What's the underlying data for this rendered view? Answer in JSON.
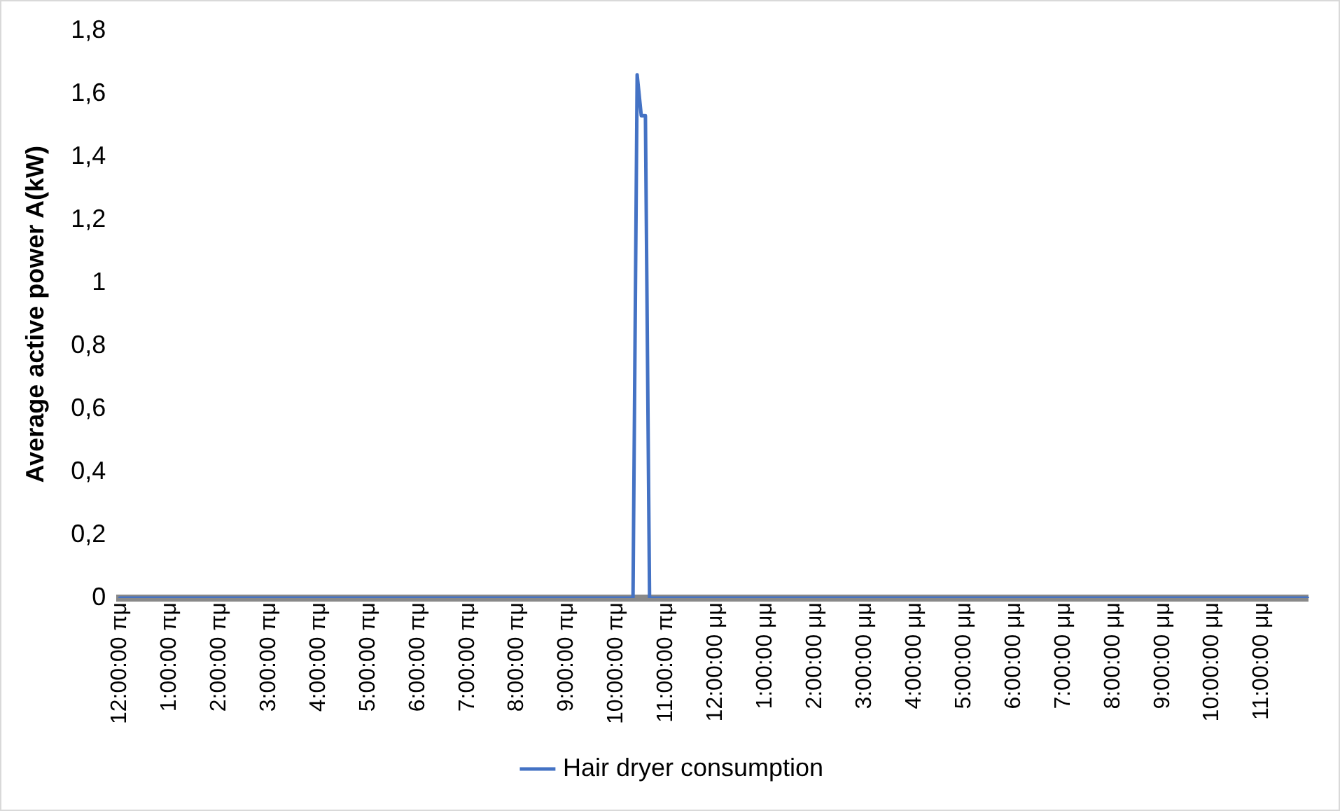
{
  "chart_data": {
    "type": "line",
    "ylabel": "Average active power A(kW)",
    "categories": [
      "12:00:00 πμ",
      null,
      null,
      null,
      null,
      null,
      null,
      null,
      null,
      null,
      null,
      null,
      "1:00:00 πμ",
      null,
      null,
      null,
      null,
      null,
      null,
      null,
      null,
      null,
      null,
      null,
      "2:00:00 πμ",
      null,
      null,
      null,
      null,
      null,
      null,
      null,
      null,
      null,
      null,
      null,
      "3:00:00 πμ",
      null,
      null,
      null,
      null,
      null,
      null,
      null,
      null,
      null,
      null,
      null,
      "4:00:00 πμ",
      null,
      null,
      null,
      null,
      null,
      null,
      null,
      null,
      null,
      null,
      null,
      "5:00:00 πμ",
      null,
      null,
      null,
      null,
      null,
      null,
      null,
      null,
      null,
      null,
      null,
      "6:00:00 πμ",
      null,
      null,
      null,
      null,
      null,
      null,
      null,
      null,
      null,
      null,
      null,
      "7:00:00 πμ",
      null,
      null,
      null,
      null,
      null,
      null,
      null,
      null,
      null,
      null,
      null,
      "8:00:00 πμ",
      null,
      null,
      null,
      null,
      null,
      null,
      null,
      null,
      null,
      null,
      null,
      "9:00:00 πμ",
      null,
      null,
      null,
      null,
      null,
      null,
      null,
      null,
      null,
      null,
      null,
      "10:00:00 πμ",
      null,
      null,
      null,
      null,
      null,
      null,
      null,
      null,
      null,
      null,
      null,
      "11:00:00 πμ",
      null,
      null,
      null,
      null,
      null,
      null,
      null,
      null,
      null,
      null,
      null,
      "12:00:00 μμ",
      null,
      null,
      null,
      null,
      null,
      null,
      null,
      null,
      null,
      null,
      null,
      "1:00:00 μμ",
      null,
      null,
      null,
      null,
      null,
      null,
      null,
      null,
      null,
      null,
      null,
      "2:00:00 μμ",
      null,
      null,
      null,
      null,
      null,
      null,
      null,
      null,
      null,
      null,
      null,
      "3:00:00 μμ",
      null,
      null,
      null,
      null,
      null,
      null,
      null,
      null,
      null,
      null,
      null,
      "4:00:00 μμ",
      null,
      null,
      null,
      null,
      null,
      null,
      null,
      null,
      null,
      null,
      null,
      "5:00:00 μμ",
      null,
      null,
      null,
      null,
      null,
      null,
      null,
      null,
      null,
      null,
      null,
      "6:00:00 μμ",
      null,
      null,
      null,
      null,
      null,
      null,
      null,
      null,
      null,
      null,
      null,
      "7:00:00 μμ",
      null,
      null,
      null,
      null,
      null,
      null,
      null,
      null,
      null,
      null,
      null,
      "8:00:00 μμ",
      null,
      null,
      null,
      null,
      null,
      null,
      null,
      null,
      null,
      null,
      null,
      "9:00:00 μμ",
      null,
      null,
      null,
      null,
      null,
      null,
      null,
      null,
      null,
      null,
      null,
      "10:00:00 μμ",
      null,
      null,
      null,
      null,
      null,
      null,
      null,
      null,
      null,
      null,
      null,
      "11:00:00 μμ",
      null,
      null,
      null,
      null,
      null,
      null,
      null,
      null,
      null,
      null,
      null
    ],
    "ylim": [
      0,
      1.8
    ],
    "yticks": [
      0,
      {
        "value": 0.2,
        "label": "0,2"
      },
      {
        "value": 0.4,
        "label": "0,4"
      },
      {
        "value": 0.6,
        "label": "0,6"
      },
      {
        "value": 0.8,
        "label": "0,8"
      },
      1,
      {
        "value": 1.2,
        "label": "1,2"
      },
      {
        "value": 1.4,
        "label": "1,4"
      },
      {
        "value": 1.6,
        "label": "1,6"
      },
      {
        "value": 1.8,
        "label": "1,8"
      }
    ],
    "grid": false,
    "legend": "bottom",
    "marker": "none",
    "line_style": "solid",
    "series": [
      {
        "name": "Hair dryer consumption",
        "color": "#4472c4",
        "values": [
          0,
          0,
          0,
          0,
          0,
          0,
          0,
          0,
          0,
          0,
          0,
          0,
          0,
          0,
          0,
          0,
          0,
          0,
          0,
          0,
          0,
          0,
          0,
          0,
          0,
          0,
          0,
          0,
          0,
          0,
          0,
          0,
          0,
          0,
          0,
          0,
          0,
          0,
          0,
          0,
          0,
          0,
          0,
          0,
          0,
          0,
          0,
          0,
          0,
          0,
          0,
          0,
          0,
          0,
          0,
          0,
          0,
          0,
          0,
          0,
          0,
          0,
          0,
          0,
          0,
          0,
          0,
          0,
          0,
          0,
          0,
          0,
          0,
          0,
          0,
          0,
          0,
          0,
          0,
          0,
          0,
          0,
          0,
          0,
          0,
          0,
          0,
          0,
          0,
          0,
          0,
          0,
          0,
          0,
          0,
          0,
          0,
          0,
          0,
          0,
          0,
          0,
          0,
          0,
          0,
          0,
          0,
          0,
          0,
          0,
          0,
          0,
          0,
          0,
          0,
          0,
          0,
          0,
          0,
          0,
          0,
          0,
          0,
          0,
          0,
          1.66,
          1.53,
          1.53,
          0,
          0,
          0,
          0,
          0,
          0,
          0,
          0,
          0,
          0,
          0,
          0,
          0,
          0,
          0,
          0,
          0,
          0,
          0,
          0,
          0,
          0,
          0,
          0,
          0,
          0,
          0,
          0,
          0,
          0,
          0,
          0,
          0,
          0,
          0,
          0,
          0,
          0,
          0,
          0,
          0,
          0,
          0,
          0,
          0,
          0,
          0,
          0,
          0,
          0,
          0,
          0,
          0,
          0,
          0,
          0,
          0,
          0,
          0,
          0,
          0,
          0,
          0,
          0,
          0,
          0,
          0,
          0,
          0,
          0,
          0,
          0,
          0,
          0,
          0,
          0,
          0,
          0,
          0,
          0,
          0,
          0,
          0,
          0,
          0,
          0,
          0,
          0,
          0,
          0,
          0,
          0,
          0,
          0,
          0,
          0,
          0,
          0,
          0,
          0,
          0,
          0,
          0,
          0,
          0,
          0,
          0,
          0,
          0,
          0,
          0,
          0,
          0,
          0,
          0,
          0,
          0,
          0,
          0,
          0,
          0,
          0,
          0,
          0,
          0,
          0,
          0,
          0,
          0,
          0,
          0,
          0,
          0,
          0,
          0,
          0,
          0,
          0,
          0,
          0,
          0,
          0,
          0,
          0,
          0,
          0,
          0,
          0,
          0,
          0,
          0,
          0,
          0,
          0,
          0,
          0,
          0,
          0,
          0,
          0
        ]
      }
    ]
  }
}
